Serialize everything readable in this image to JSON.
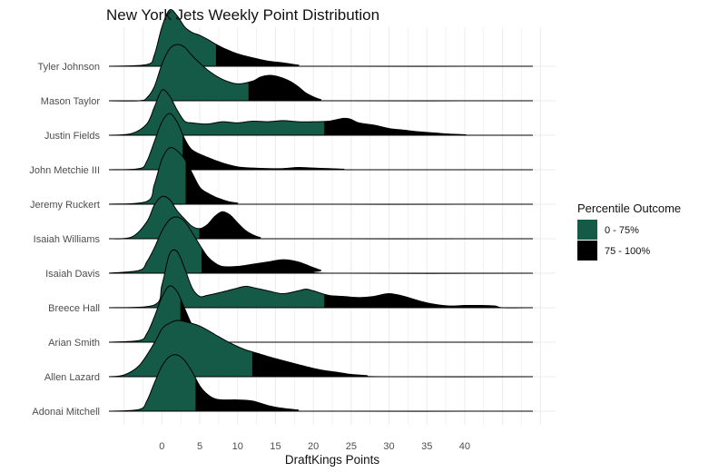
{
  "chart_data": {
    "type": "area",
    "subtype": "ridgeline",
    "title": "New York Jets Weekly Point Distribution",
    "xlabel": "DraftKings Points",
    "ylabel": "",
    "xlim": [
      -7,
      52
    ],
    "xticks": [
      0,
      5,
      10,
      15,
      20,
      25,
      30,
      35,
      40
    ],
    "grid": true,
    "legend_position": "right",
    "legend": {
      "title": "Percentile Outcome",
      "items": [
        {
          "label": "0 - 75%",
          "color": "#145a46"
        },
        {
          "label": "75 - 100%",
          "color": "#000000"
        }
      ]
    },
    "players": [
      {
        "name": "Tyler Johnson",
        "p75": 7.2,
        "density": [
          [
            -7,
            0
          ],
          [
            -2,
            0.03
          ],
          [
            -1,
            0.2
          ],
          [
            0,
            0.7
          ],
          [
            1,
            1.0
          ],
          [
            2,
            0.9
          ],
          [
            3,
            0.7
          ],
          [
            4,
            0.6
          ],
          [
            5,
            0.55
          ],
          [
            6,
            0.48
          ],
          [
            7,
            0.4
          ],
          [
            8,
            0.33
          ],
          [
            10,
            0.22
          ],
          [
            12,
            0.15
          ],
          [
            14,
            0.09
          ],
          [
            16,
            0.06
          ],
          [
            18,
            0.02
          ],
          [
            20,
            0
          ],
          [
            49,
            0
          ]
        ]
      },
      {
        "name": "Mason Taylor",
        "p75": 11.5,
        "density": [
          [
            -7,
            0
          ],
          [
            -3,
            0
          ],
          [
            -2,
            0.05
          ],
          [
            -1,
            0.25
          ],
          [
            0,
            0.65
          ],
          [
            1,
            0.92
          ],
          [
            2,
            1.0
          ],
          [
            3,
            0.95
          ],
          [
            4,
            0.8
          ],
          [
            6,
            0.55
          ],
          [
            8,
            0.38
          ],
          [
            10,
            0.3
          ],
          [
            12,
            0.35
          ],
          [
            13,
            0.42
          ],
          [
            14,
            0.45
          ],
          [
            15,
            0.44
          ],
          [
            16,
            0.4
          ],
          [
            17,
            0.34
          ],
          [
            18,
            0.25
          ],
          [
            19,
            0.14
          ],
          [
            20,
            0.07
          ],
          [
            21,
            0.02
          ],
          [
            22,
            0
          ],
          [
            49,
            0
          ]
        ]
      },
      {
        "name": "Justin Fields",
        "p75": 21.5,
        "density": [
          [
            -7,
            0
          ],
          [
            -4,
            0.03
          ],
          [
            -2,
            0.2
          ],
          [
            -1,
            0.5
          ],
          [
            0,
            0.8
          ],
          [
            1,
            0.7
          ],
          [
            2,
            0.45
          ],
          [
            3,
            0.25
          ],
          [
            4,
            0.22
          ],
          [
            6,
            0.2
          ],
          [
            8,
            0.24
          ],
          [
            10,
            0.22
          ],
          [
            12,
            0.25
          ],
          [
            14,
            0.24
          ],
          [
            16,
            0.26
          ],
          [
            18,
            0.24
          ],
          [
            20,
            0.24
          ],
          [
            22,
            0.25
          ],
          [
            24,
            0.3
          ],
          [
            25,
            0.28
          ],
          [
            26,
            0.22
          ],
          [
            28,
            0.18
          ],
          [
            30,
            0.12
          ],
          [
            32,
            0.09
          ],
          [
            34,
            0.06
          ],
          [
            36,
            0.04
          ],
          [
            38,
            0.02
          ],
          [
            40,
            0.01
          ],
          [
            41,
            0
          ],
          [
            49,
            0
          ]
        ]
      },
      {
        "name": "John Metchie III",
        "p75": 2.8,
        "density": [
          [
            -7,
            0
          ],
          [
            -3,
            0.02
          ],
          [
            -2,
            0.15
          ],
          [
            -1,
            0.5
          ],
          [
            0,
            0.85
          ],
          [
            1,
            1.0
          ],
          [
            2,
            0.85
          ],
          [
            3,
            0.55
          ],
          [
            4,
            0.35
          ],
          [
            6,
            0.22
          ],
          [
            8,
            0.12
          ],
          [
            10,
            0.05
          ],
          [
            12,
            0.03
          ],
          [
            14,
            0.02
          ],
          [
            16,
            0.02
          ],
          [
            18,
            0.04
          ],
          [
            20,
            0.03
          ],
          [
            22,
            0.02
          ],
          [
            24,
            0.01
          ],
          [
            25,
            0
          ],
          [
            49,
            0
          ]
        ]
      },
      {
        "name": "Jeremy Ruckert",
        "p75": 3.2,
        "density": [
          [
            -7,
            0
          ],
          [
            -2,
            0.05
          ],
          [
            -1,
            0.35
          ],
          [
            0,
            0.8
          ],
          [
            1,
            1.0
          ],
          [
            2,
            0.95
          ],
          [
            3,
            0.8
          ],
          [
            4,
            0.55
          ],
          [
            5,
            0.3
          ],
          [
            6,
            0.2
          ],
          [
            7,
            0.13
          ],
          [
            8,
            0.08
          ],
          [
            9,
            0.04
          ],
          [
            10,
            0.02
          ],
          [
            11,
            0
          ],
          [
            49,
            0
          ]
        ]
      },
      {
        "name": "Isaiah Williams",
        "p75": 5.0,
        "density": [
          [
            -7,
            0
          ],
          [
            -4,
            0.03
          ],
          [
            -2,
            0.3
          ],
          [
            -1,
            0.6
          ],
          [
            0,
            0.75
          ],
          [
            1,
            0.7
          ],
          [
            2,
            0.5
          ],
          [
            3,
            0.35
          ],
          [
            4,
            0.22
          ],
          [
            5,
            0.18
          ],
          [
            6,
            0.25
          ],
          [
            7,
            0.4
          ],
          [
            8,
            0.48
          ],
          [
            9,
            0.42
          ],
          [
            10,
            0.28
          ],
          [
            11,
            0.15
          ],
          [
            12,
            0.07
          ],
          [
            13,
            0.02
          ],
          [
            14,
            0
          ],
          [
            49,
            0
          ]
        ]
      },
      {
        "name": "Isaiah Davis",
        "p75": 5.3,
        "density": [
          [
            -7,
            0
          ],
          [
            -3,
            0.05
          ],
          [
            -2,
            0.2
          ],
          [
            -1,
            0.45
          ],
          [
            0,
            0.75
          ],
          [
            1,
            0.95
          ],
          [
            2,
            1.0
          ],
          [
            3,
            0.92
          ],
          [
            4,
            0.72
          ],
          [
            5,
            0.5
          ],
          [
            6,
            0.3
          ],
          [
            7,
            0.18
          ],
          [
            8,
            0.12
          ],
          [
            10,
            0.12
          ],
          [
            12,
            0.16
          ],
          [
            14,
            0.2
          ],
          [
            16,
            0.24
          ],
          [
            18,
            0.2
          ],
          [
            20,
            0.1
          ],
          [
            21,
            0.05
          ],
          [
            22,
            0
          ],
          [
            49,
            0
          ]
        ]
      },
      {
        "name": "Breece Hall",
        "p75": 21.5,
        "density": [
          [
            -7,
            0
          ],
          [
            -1,
            0.05
          ],
          [
            0,
            0.4
          ],
          [
            1,
            0.95
          ],
          [
            2,
            1.0
          ],
          [
            3,
            0.7
          ],
          [
            4,
            0.35
          ],
          [
            5,
            0.2
          ],
          [
            6,
            0.22
          ],
          [
            8,
            0.28
          ],
          [
            10,
            0.35
          ],
          [
            11,
            0.38
          ],
          [
            12,
            0.36
          ],
          [
            14,
            0.3
          ],
          [
            16,
            0.25
          ],
          [
            18,
            0.3
          ],
          [
            19,
            0.33
          ],
          [
            20,
            0.3
          ],
          [
            22,
            0.22
          ],
          [
            24,
            0.2
          ],
          [
            26,
            0.18
          ],
          [
            28,
            0.2
          ],
          [
            30,
            0.25
          ],
          [
            32,
            0.2
          ],
          [
            34,
            0.12
          ],
          [
            36,
            0.06
          ],
          [
            38,
            0.03
          ],
          [
            40,
            0.04
          ],
          [
            42,
            0.04
          ],
          [
            44,
            0.03
          ],
          [
            45,
            0
          ],
          [
            49,
            0
          ]
        ]
      },
      {
        "name": "Arian Smith",
        "p75": 2.5,
        "density": [
          [
            -7,
            0
          ],
          [
            -3,
            0.03
          ],
          [
            -2,
            0.15
          ],
          [
            -1,
            0.45
          ],
          [
            0,
            0.8
          ],
          [
            1,
            1.0
          ],
          [
            2,
            0.9
          ],
          [
            3,
            0.6
          ],
          [
            4,
            0.3
          ],
          [
            5,
            0.12
          ],
          [
            6,
            0.05
          ],
          [
            7,
            0.01
          ],
          [
            8,
            0
          ],
          [
            49,
            0
          ]
        ]
      },
      {
        "name": "Allen Lazard",
        "p75": 12.0,
        "density": [
          [
            -7,
            0
          ],
          [
            -5,
            0.03
          ],
          [
            -3,
            0.2
          ],
          [
            -1,
            0.6
          ],
          [
            0,
            0.85
          ],
          [
            1,
            0.95
          ],
          [
            2,
            1.0
          ],
          [
            3,
            0.98
          ],
          [
            5,
            0.9
          ],
          [
            7,
            0.75
          ],
          [
            9,
            0.6
          ],
          [
            11,
            0.48
          ],
          [
            13,
            0.4
          ],
          [
            15,
            0.32
          ],
          [
            17,
            0.25
          ],
          [
            19,
            0.18
          ],
          [
            21,
            0.12
          ],
          [
            23,
            0.08
          ],
          [
            25,
            0.04
          ],
          [
            27,
            0.02
          ],
          [
            29,
            0
          ],
          [
            49,
            0
          ]
        ]
      },
      {
        "name": "Adonai Mitchell",
        "p75": 4.5,
        "density": [
          [
            -7,
            0
          ],
          [
            -3,
            0.03
          ],
          [
            -2,
            0.18
          ],
          [
            -1,
            0.5
          ],
          [
            0,
            0.8
          ],
          [
            1,
            0.97
          ],
          [
            2,
            1.0
          ],
          [
            3,
            0.9
          ],
          [
            4,
            0.7
          ],
          [
            5,
            0.45
          ],
          [
            6,
            0.3
          ],
          [
            7,
            0.22
          ],
          [
            8,
            0.2
          ],
          [
            10,
            0.2
          ],
          [
            12,
            0.18
          ],
          [
            14,
            0.1
          ],
          [
            16,
            0.05
          ],
          [
            18,
            0.02
          ],
          [
            19,
            0
          ],
          [
            49,
            0
          ]
        ]
      }
    ]
  }
}
